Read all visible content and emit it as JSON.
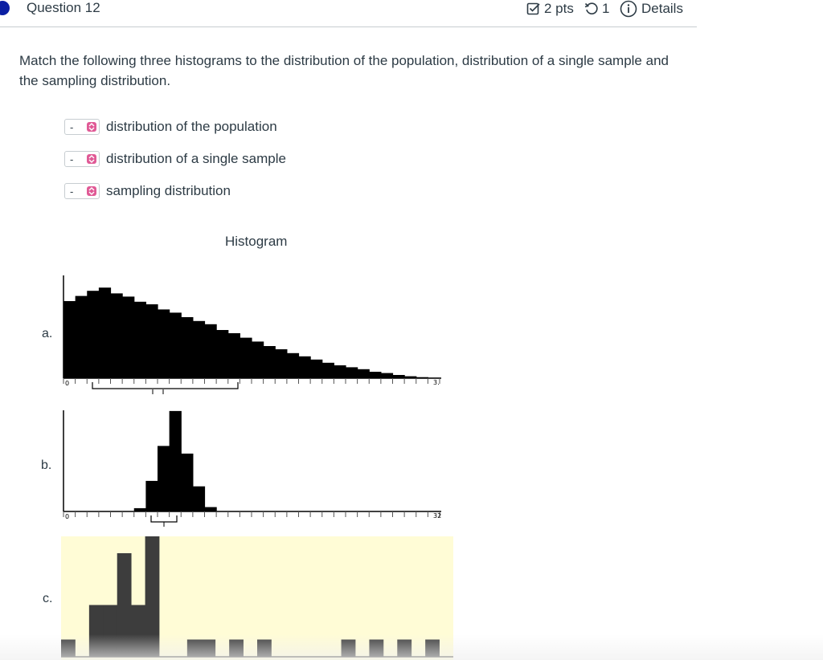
{
  "header": {
    "title": "Question 12",
    "points": "2 pts",
    "attempts": "1",
    "details": "Details"
  },
  "prompt": "Match the following three histograms to the distribution of the population, distribution of a single sample and the sampling distribution.",
  "matches": [
    {
      "selected": "-",
      "label": "distribution of the population"
    },
    {
      "selected": "-",
      "label": "distribution of a single sample"
    },
    {
      "selected": "-",
      "label": "sampling distribution"
    }
  ],
  "histogram_title": "Histogram",
  "chart_data": [
    {
      "type": "bar",
      "label": "a.",
      "values": [
        6,
        6.4,
        6.8,
        7.05,
        6.6,
        6.35,
        5.95,
        5.75,
        5.35,
        5.1,
        4.75,
        4.45,
        4.2,
        3.75,
        3.5,
        3.15,
        2.85,
        2.5,
        2.25,
        1.95,
        1.7,
        1.45,
        1.2,
        1.0,
        0.85,
        0.7,
        0.5,
        0.4,
        0.25,
        0.15,
        0.08,
        0.04
      ],
      "xlim": [
        0,
        32
      ],
      "tick_labels": [
        "0",
        "3."
      ]
    },
    {
      "type": "bar",
      "label": "b.",
      "values": [
        0,
        0,
        0,
        0,
        0,
        0,
        0.3,
        2.8,
        6.0,
        9.2,
        5.3,
        2.3,
        0.4,
        0,
        0,
        0,
        0,
        0,
        0,
        0,
        0,
        0,
        0,
        0,
        0,
        0,
        0,
        0,
        0,
        0,
        0,
        0
      ],
      "xlim": [
        0,
        32
      ],
      "tick_labels": [
        "0",
        "32"
      ]
    },
    {
      "type": "bar",
      "label": "c.",
      "values": [
        1,
        0,
        3,
        3,
        6,
        3,
        7,
        0,
        0,
        1,
        1,
        0,
        1,
        0,
        1,
        0,
        0,
        0,
        0,
        0,
        1,
        0,
        1,
        0,
        1,
        0,
        1,
        0
      ],
      "xlim": [
        0,
        28
      ],
      "background": "#fffcd6"
    }
  ],
  "colors": {
    "accent_dot": "#0b1fa3",
    "select_arrow": "#e05a96",
    "bar_dark": "#000000",
    "bar_c": "#3d3d3d"
  }
}
